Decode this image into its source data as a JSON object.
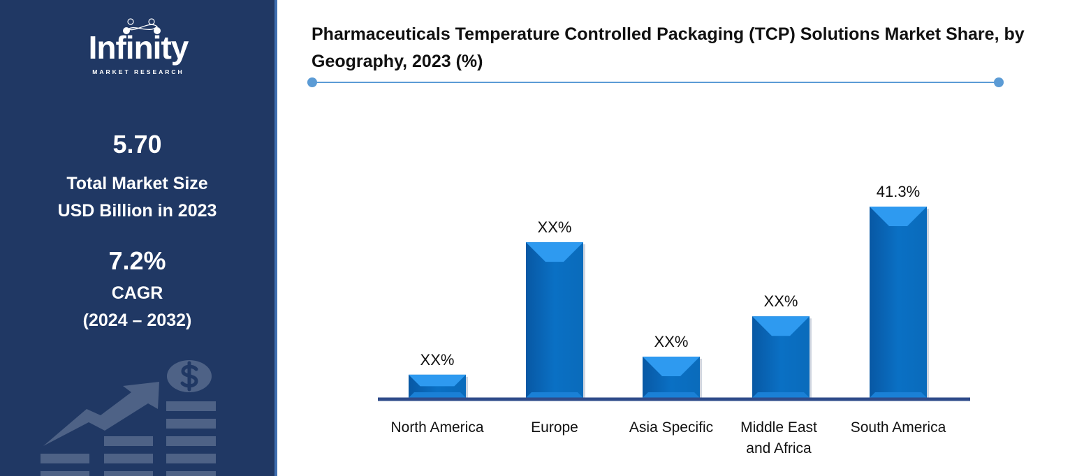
{
  "sidebar": {
    "logo": {
      "name": "Infinity",
      "tagline": "MARKET RESEARCH"
    },
    "market_size_value": "5.70",
    "market_size_label_1": "Total Market Size",
    "market_size_label_2": "USD Billion in 2023",
    "cagr_value": "7.2%",
    "cagr_label": "CAGR",
    "cagr_period": "(2024 – 2032)",
    "decoration_icon": "growth-chart-dollar-icon"
  },
  "colors": {
    "sidebar": "#203864",
    "bar": "#0a6fc2",
    "bar_highlight": "#2e9af0",
    "axis": "#2f4b8a",
    "title_rule": "#5b9bd5"
  },
  "chart_data": {
    "type": "bar",
    "title": "Pharmaceuticals Temperature Controlled Packaging (TCP) Solutions Market Share, by Geography, 2023 (%)",
    "categories": [
      "North America",
      "Europe",
      "Asia Specific",
      "Middle East and Africa",
      "South America"
    ],
    "category_lines": [
      [
        "North America"
      ],
      [
        "Europe"
      ],
      [
        "Asia Specific"
      ],
      [
        "Middle East",
        "and Africa"
      ],
      [
        "South America"
      ]
    ],
    "values": [
      5.0,
      33.6,
      8.9,
      17.6,
      41.3
    ],
    "data_labels": [
      "XX%",
      "XX%",
      "XX%",
      "XX%",
      "41.3%"
    ],
    "ylim": [
      0,
      45
    ],
    "grid": false,
    "legend": "none",
    "xlabel": "",
    "ylabel": ""
  }
}
